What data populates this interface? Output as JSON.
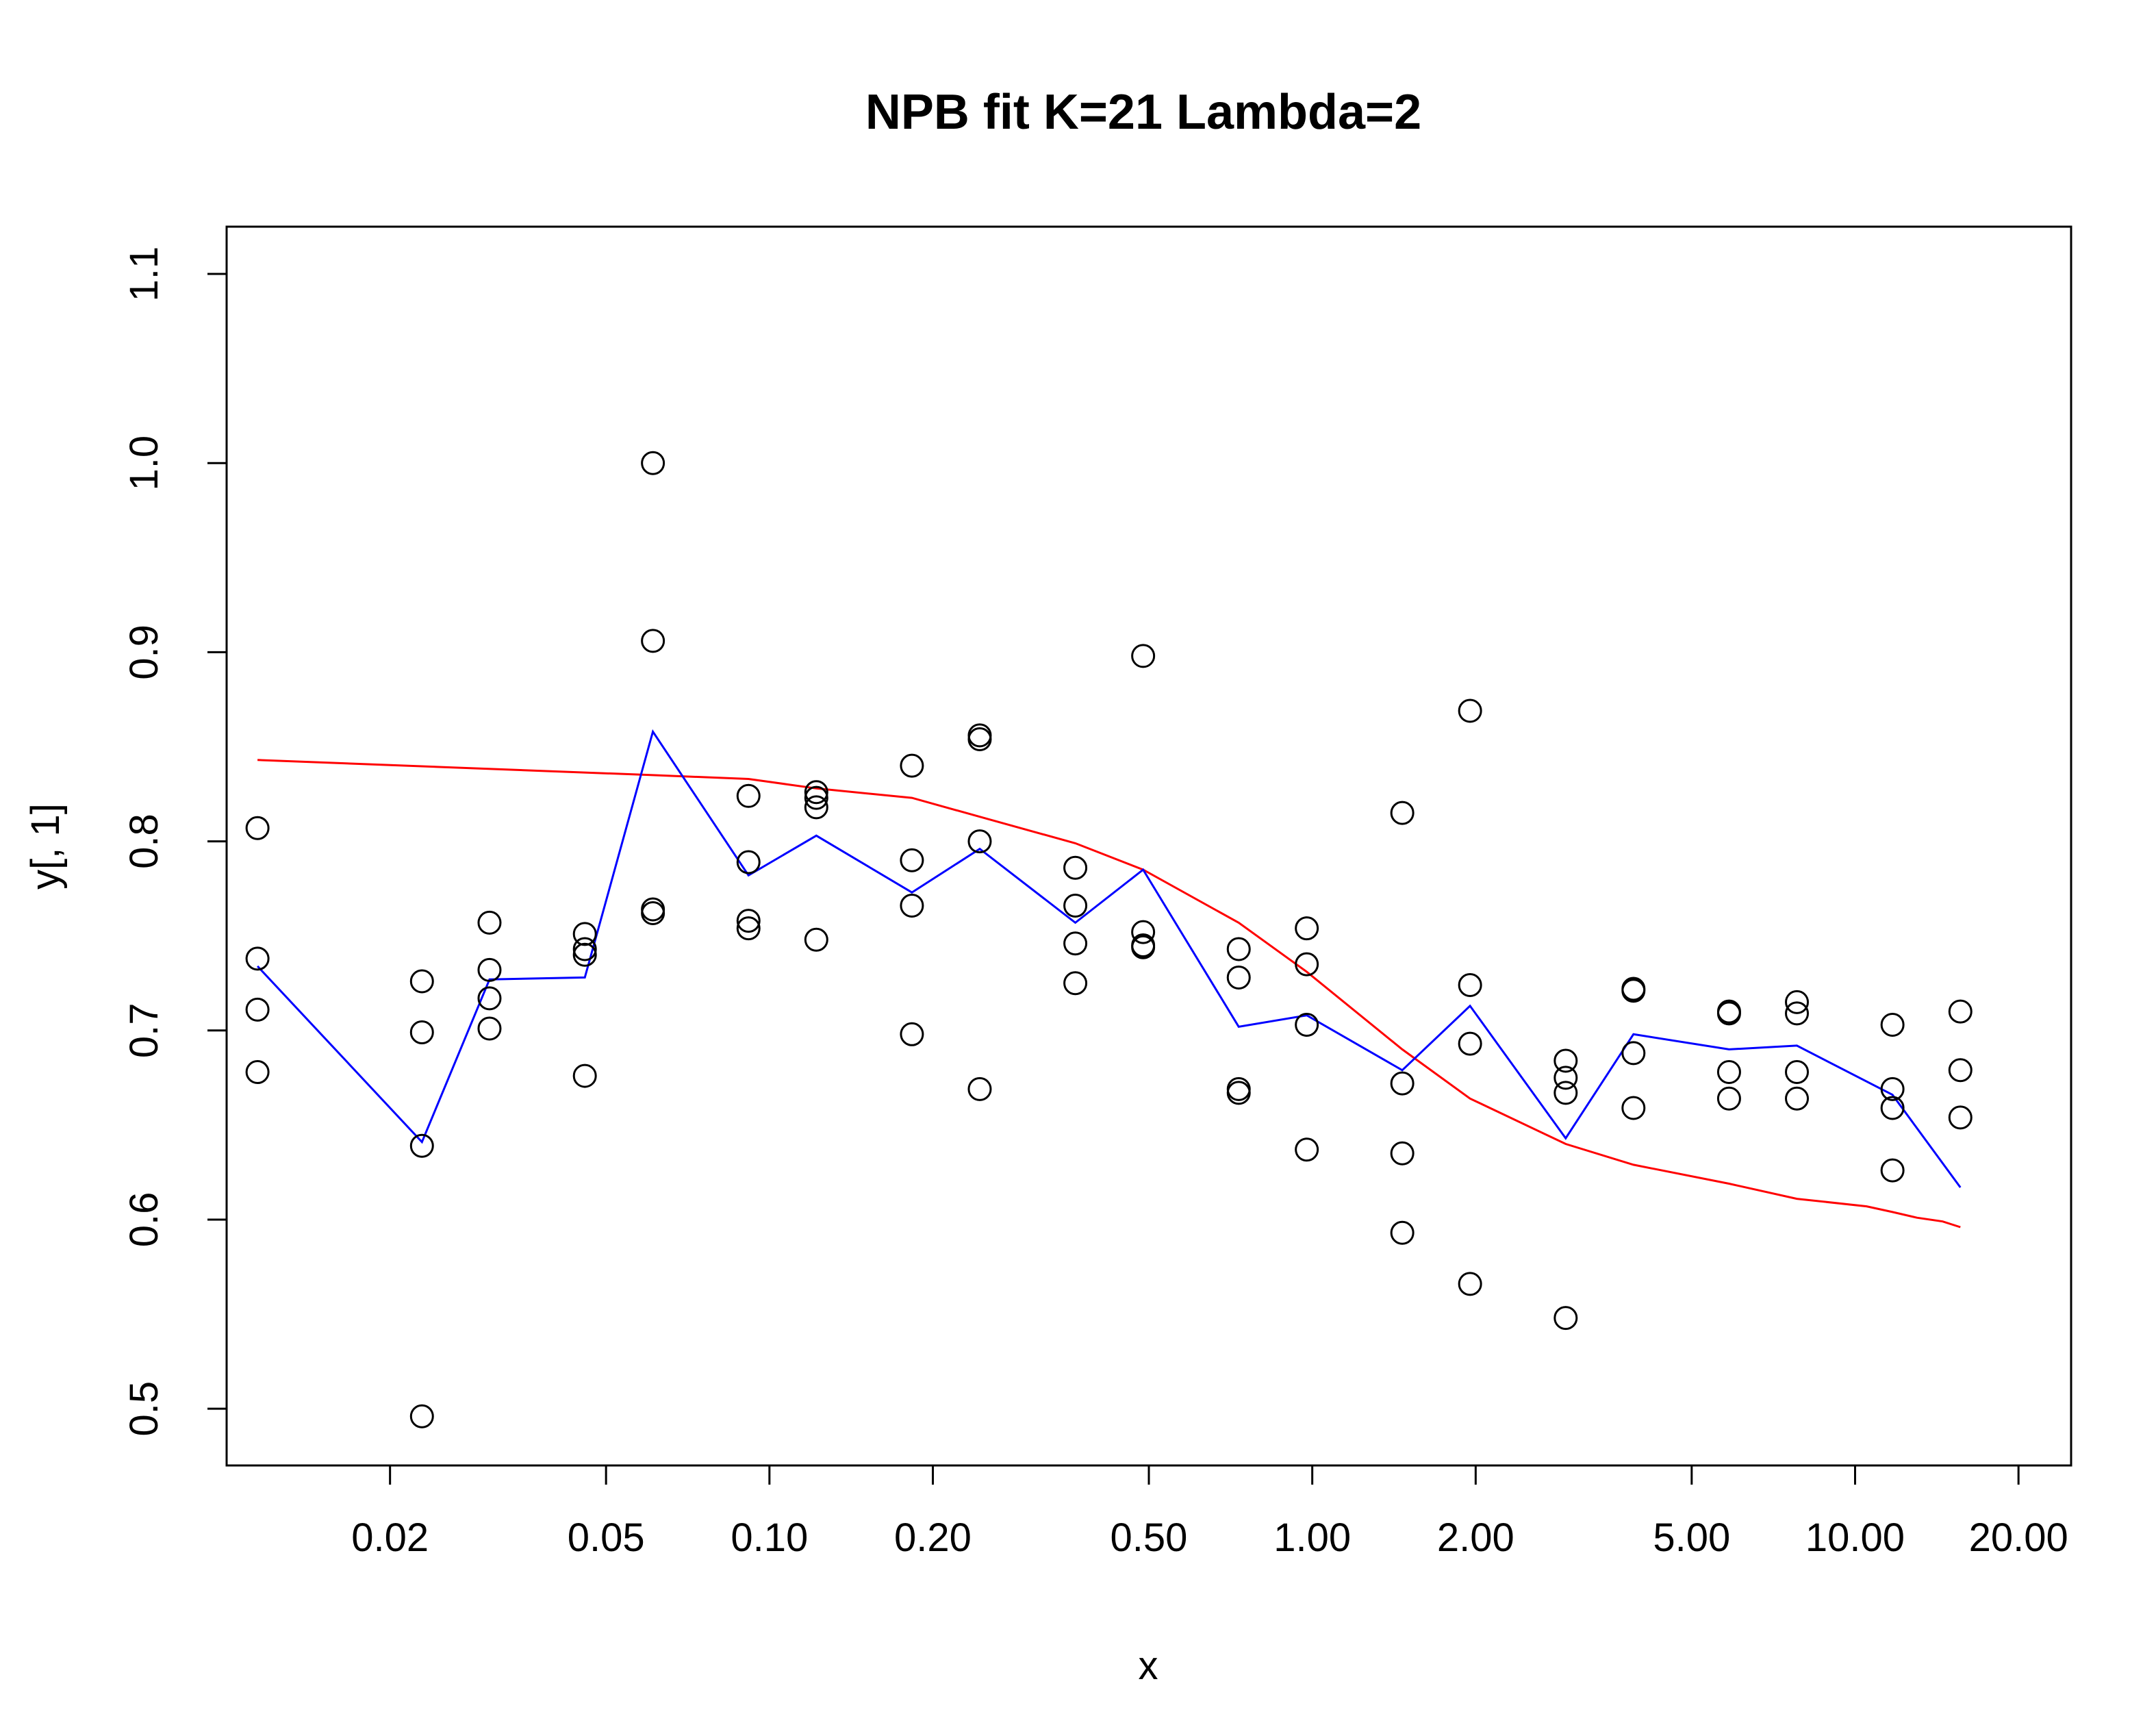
{
  "chart_data": {
    "type": "scatter",
    "title": "NPB fit K=21 Lambda=2",
    "xlabel": "x",
    "ylabel": "y[, 1]",
    "x_scale": "log",
    "xlim": [
      0.01,
      25
    ],
    "ylim": [
      0.47,
      1.125
    ],
    "x_ticks": [
      {
        "value": 0.02,
        "label": "0.02"
      },
      {
        "value": 0.05,
        "label": "0.05"
      },
      {
        "value": 0.1,
        "label": "0.10"
      },
      {
        "value": 0.2,
        "label": "0.20"
      },
      {
        "value": 0.5,
        "label": "0.50"
      },
      {
        "value": 1.0,
        "label": "1.00"
      },
      {
        "value": 2.0,
        "label": "2.00"
      },
      {
        "value": 5.0,
        "label": "5.00"
      },
      {
        "value": 10.0,
        "label": "10.00"
      },
      {
        "value": 20.0,
        "label": "20.00"
      }
    ],
    "y_ticks": [
      {
        "value": 0.5,
        "label": "0.5"
      },
      {
        "value": 0.6,
        "label": "0.6"
      },
      {
        "value": 0.7,
        "label": "0.7"
      },
      {
        "value": 0.8,
        "label": "0.8"
      },
      {
        "value": 0.9,
        "label": "0.9"
      },
      {
        "value": 1.0,
        "label": "1.0"
      },
      {
        "value": 1.1,
        "label": "1.1"
      }
    ],
    "grid": false,
    "legend": "none",
    "colors": {
      "points": "#000000",
      "blue_line": "#0000ff",
      "red_line": "#ff0000"
    },
    "points": [
      [
        0.0114,
        0.807
      ],
      [
        0.0114,
        0.738
      ],
      [
        0.0114,
        0.711
      ],
      [
        0.0114,
        0.678
      ],
      [
        0.0229,
        0.726
      ],
      [
        0.0229,
        0.699
      ],
      [
        0.0229,
        0.639
      ],
      [
        0.0229,
        0.496
      ],
      [
        0.0305,
        0.757
      ],
      [
        0.0305,
        0.732
      ],
      [
        0.0305,
        0.717
      ],
      [
        0.0305,
        0.701
      ],
      [
        0.0457,
        0.751
      ],
      [
        0.0457,
        0.743
      ],
      [
        0.0457,
        0.74
      ],
      [
        0.0457,
        0.676
      ],
      [
        0.061,
        1.0
      ],
      [
        0.061,
        0.906
      ],
      [
        0.061,
        0.764
      ],
      [
        0.061,
        0.762
      ],
      [
        0.0915,
        0.824
      ],
      [
        0.0915,
        0.789
      ],
      [
        0.0915,
        0.758
      ],
      [
        0.0915,
        0.754
      ],
      [
        0.122,
        0.826
      ],
      [
        0.122,
        0.823
      ],
      [
        0.122,
        0.818
      ],
      [
        0.122,
        0.748
      ],
      [
        0.183,
        0.84
      ],
      [
        0.183,
        0.79
      ],
      [
        0.183,
        0.766
      ],
      [
        0.183,
        0.698
      ],
      [
        0.244,
        0.856
      ],
      [
        0.244,
        0.854
      ],
      [
        0.244,
        0.8
      ],
      [
        0.244,
        0.669
      ],
      [
        0.366,
        0.786
      ],
      [
        0.366,
        0.766
      ],
      [
        0.366,
        0.746
      ],
      [
        0.366,
        0.725
      ],
      [
        0.488,
        0.898
      ],
      [
        0.488,
        0.752
      ],
      [
        0.488,
        0.745
      ],
      [
        0.488,
        0.744
      ],
      [
        0.732,
        0.743
      ],
      [
        0.732,
        0.728
      ],
      [
        0.732,
        0.669
      ],
      [
        0.732,
        0.667
      ],
      [
        0.977,
        0.754
      ],
      [
        0.977,
        0.735
      ],
      [
        0.977,
        0.703
      ],
      [
        0.977,
        0.637
      ],
      [
        1.465,
        0.815
      ],
      [
        1.465,
        0.672
      ],
      [
        1.465,
        0.635
      ],
      [
        1.465,
        0.593
      ],
      [
        1.953,
        0.869
      ],
      [
        1.953,
        0.724
      ],
      [
        1.953,
        0.693
      ],
      [
        1.953,
        0.566
      ],
      [
        2.93,
        0.684
      ],
      [
        2.93,
        0.675
      ],
      [
        2.93,
        0.667
      ],
      [
        2.93,
        0.548
      ],
      [
        3.906,
        0.722
      ],
      [
        3.906,
        0.721
      ],
      [
        3.906,
        0.688
      ],
      [
        3.906,
        0.659
      ],
      [
        5.859,
        0.71
      ],
      [
        5.859,
        0.709
      ],
      [
        5.859,
        0.678
      ],
      [
        5.859,
        0.664
      ],
      [
        7.813,
        0.715
      ],
      [
        7.813,
        0.709
      ],
      [
        7.813,
        0.678
      ],
      [
        7.813,
        0.664
      ],
      [
        11.72,
        0.703
      ],
      [
        11.72,
        0.669
      ],
      [
        11.72,
        0.659
      ],
      [
        11.72,
        0.626
      ],
      [
        15.63,
        0.71
      ],
      [
        15.63,
        0.679
      ],
      [
        15.63,
        0.654
      ]
    ],
    "blue_line": [
      [
        0.0114,
        0.734
      ],
      [
        0.0229,
        0.641
      ],
      [
        0.0305,
        0.727
      ],
      [
        0.0457,
        0.728
      ],
      [
        0.061,
        0.858
      ],
      [
        0.0915,
        0.782
      ],
      [
        0.122,
        0.803
      ],
      [
        0.183,
        0.773
      ],
      [
        0.244,
        0.796
      ],
      [
        0.366,
        0.757
      ],
      [
        0.488,
        0.785
      ],
      [
        0.732,
        0.702
      ],
      [
        0.977,
        0.708
      ],
      [
        1.465,
        0.679
      ],
      [
        1.953,
        0.713
      ],
      [
        2.93,
        0.643
      ],
      [
        3.906,
        0.698
      ],
      [
        5.859,
        0.69
      ],
      [
        7.813,
        0.692
      ],
      [
        11.72,
        0.666
      ],
      [
        15.63,
        0.617
      ]
    ],
    "red_line": [
      [
        0.0114,
        0.843
      ],
      [
        0.061,
        0.835
      ],
      [
        0.0915,
        0.833
      ],
      [
        0.122,
        0.828
      ],
      [
        0.183,
        0.823
      ],
      [
        0.244,
        0.813
      ],
      [
        0.366,
        0.799
      ],
      [
        0.488,
        0.785
      ],
      [
        0.732,
        0.757
      ],
      [
        0.977,
        0.731
      ],
      [
        1.465,
        0.69
      ],
      [
        1.953,
        0.664
      ],
      [
        2.93,
        0.64
      ],
      [
        3.906,
        0.629
      ],
      [
        5.859,
        0.619
      ],
      [
        7.813,
        0.611
      ],
      [
        10.5,
        0.607
      ],
      [
        11.72,
        0.604
      ],
      [
        13.0,
        0.601
      ],
      [
        14.5,
        0.599
      ],
      [
        15.63,
        0.596
      ]
    ]
  }
}
